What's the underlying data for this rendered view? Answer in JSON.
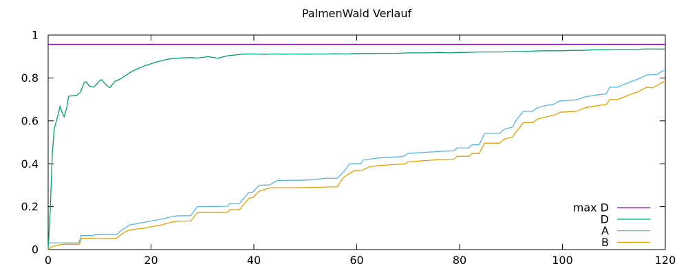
{
  "chart_data": {
    "type": "line",
    "title": "PalmenWald Verlauf",
    "xlabel": "",
    "ylabel": "",
    "xlim": [
      0,
      120
    ],
    "ylim": [
      0,
      1
    ],
    "xticks": [
      0,
      20,
      40,
      60,
      80,
      100,
      120
    ],
    "xtick_labels": [
      "0",
      "20",
      "40",
      "60",
      "80",
      "100",
      "120"
    ],
    "yticks": [
      0,
      0.2,
      0.4,
      0.6,
      0.8,
      1
    ],
    "ytick_labels": [
      "0",
      "0.2",
      "0.4",
      "0.6",
      "0.8",
      "1"
    ],
    "grid": false,
    "legend_position": "inside-bottom-right",
    "background_color": "#ffffff",
    "axis_color": "#000000",
    "series": [
      {
        "name": "max D",
        "color": "#9400d3",
        "points": [
          [
            0,
            0.957
          ],
          [
            120,
            0.957
          ]
        ]
      },
      {
        "name": "D",
        "color": "#009e73",
        "points": [
          [
            0,
            0
          ],
          [
            0.4,
            0.18
          ],
          [
            0.8,
            0.45
          ],
          [
            1.2,
            0.565
          ],
          [
            1.6,
            0.6
          ],
          [
            2,
            0.635
          ],
          [
            2.3,
            0.669
          ],
          [
            2.7,
            0.64
          ],
          [
            3.1,
            0.619
          ],
          [
            3.6,
            0.66
          ],
          [
            4,
            0.715
          ],
          [
            4.8,
            0.717
          ],
          [
            5.6,
            0.72
          ],
          [
            6.3,
            0.735
          ],
          [
            7,
            0.778
          ],
          [
            7.4,
            0.783
          ],
          [
            8,
            0.762
          ],
          [
            8.8,
            0.757
          ],
          [
            9.4,
            0.77
          ],
          [
            10,
            0.788
          ],
          [
            10.4,
            0.792
          ],
          [
            11,
            0.775
          ],
          [
            11.5,
            0.762
          ],
          [
            12,
            0.755
          ],
          [
            12.6,
            0.772
          ],
          [
            13,
            0.784
          ],
          [
            14,
            0.795
          ],
          [
            15,
            0.81
          ],
          [
            15.7,
            0.822
          ],
          [
            16.5,
            0.833
          ],
          [
            17.4,
            0.843
          ],
          [
            18.3,
            0.852
          ],
          [
            19.2,
            0.86
          ],
          [
            20,
            0.866
          ],
          [
            21,
            0.874
          ],
          [
            22,
            0.88
          ],
          [
            23,
            0.886
          ],
          [
            24,
            0.89
          ],
          [
            25,
            0.892
          ],
          [
            26,
            0.894
          ],
          [
            27,
            0.895
          ],
          [
            28,
            0.895
          ],
          [
            29,
            0.893
          ],
          [
            30,
            0.896
          ],
          [
            31,
            0.899
          ],
          [
            32,
            0.896
          ],
          [
            33,
            0.892
          ],
          [
            34,
            0.898
          ],
          [
            35,
            0.904
          ],
          [
            36,
            0.906
          ],
          [
            37,
            0.909
          ],
          [
            38,
            0.911
          ],
          [
            40,
            0.912
          ],
          [
            42,
            0.91
          ],
          [
            44,
            0.912
          ],
          [
            46,
            0.911
          ],
          [
            48,
            0.912
          ],
          [
            50,
            0.911
          ],
          [
            52,
            0.912
          ],
          [
            54,
            0.912
          ],
          [
            56,
            0.913
          ],
          [
            58,
            0.912
          ],
          [
            60,
            0.914
          ],
          [
            62,
            0.914
          ],
          [
            64,
            0.915
          ],
          [
            66,
            0.915
          ],
          [
            68,
            0.915
          ],
          [
            70,
            0.917
          ],
          [
            72,
            0.917
          ],
          [
            74,
            0.917
          ],
          [
            76,
            0.919
          ],
          [
            78,
            0.917
          ],
          [
            80,
            0.919
          ],
          [
            82,
            0.92
          ],
          [
            84,
            0.921
          ],
          [
            86,
            0.921
          ],
          [
            88,
            0.921
          ],
          [
            90,
            0.923
          ],
          [
            92,
            0.923
          ],
          [
            94,
            0.925
          ],
          [
            96,
            0.927
          ],
          [
            98,
            0.927
          ],
          [
            100,
            0.927
          ],
          [
            102,
            0.929
          ],
          [
            104,
            0.929
          ],
          [
            106,
            0.931
          ],
          [
            108,
            0.931
          ],
          [
            110,
            0.933
          ],
          [
            112,
            0.933
          ],
          [
            114,
            0.933
          ],
          [
            116,
            0.935
          ],
          [
            118,
            0.935
          ],
          [
            120,
            0.935
          ]
        ]
      },
      {
        "name": "A",
        "color": "#56b4e9",
        "points": [
          [
            0,
            0.031
          ],
          [
            6,
            0.031
          ],
          [
            6.4,
            0.065
          ],
          [
            8.8,
            0.065
          ],
          [
            9.1,
            0.07
          ],
          [
            13.3,
            0.07
          ],
          [
            14,
            0.085
          ],
          [
            15,
            0.101
          ],
          [
            15.7,
            0.114
          ],
          [
            17,
            0.12
          ],
          [
            18.7,
            0.127
          ],
          [
            20,
            0.133
          ],
          [
            22.3,
            0.143
          ],
          [
            24.1,
            0.154
          ],
          [
            25,
            0.157
          ],
          [
            27.7,
            0.158
          ],
          [
            29,
            0.2
          ],
          [
            32,
            0.201
          ],
          [
            34.9,
            0.202
          ],
          [
            35.3,
            0.215
          ],
          [
            37.2,
            0.215
          ],
          [
            39,
            0.266
          ],
          [
            39.8,
            0.268
          ],
          [
            41,
            0.3
          ],
          [
            43,
            0.301
          ],
          [
            44.6,
            0.322
          ],
          [
            49,
            0.323
          ],
          [
            52,
            0.326
          ],
          [
            53.5,
            0.332
          ],
          [
            56.2,
            0.332
          ],
          [
            57.5,
            0.364
          ],
          [
            58.6,
            0.4
          ],
          [
            60.8,
            0.4
          ],
          [
            61.3,
            0.418
          ],
          [
            64.2,
            0.427
          ],
          [
            67.8,
            0.432
          ],
          [
            69.1,
            0.435
          ],
          [
            70,
            0.448
          ],
          [
            73.1,
            0.453
          ],
          [
            76.2,
            0.458
          ],
          [
            78.9,
            0.46
          ],
          [
            79.5,
            0.474
          ],
          [
            81.8,
            0.474
          ],
          [
            82.4,
            0.488
          ],
          [
            83.8,
            0.488
          ],
          [
            84.9,
            0.542
          ],
          [
            87.8,
            0.542
          ],
          [
            88.6,
            0.56
          ],
          [
            90.3,
            0.571
          ],
          [
            91,
            0.603
          ],
          [
            92.4,
            0.645
          ],
          [
            94.2,
            0.645
          ],
          [
            95.1,
            0.661
          ],
          [
            96.9,
            0.672
          ],
          [
            98.2,
            0.677
          ],
          [
            99.5,
            0.693
          ],
          [
            102.7,
            0.698
          ],
          [
            104.4,
            0.712
          ],
          [
            107.1,
            0.722
          ],
          [
            108.5,
            0.726
          ],
          [
            109.2,
            0.757
          ],
          [
            110.7,
            0.757
          ],
          [
            112.9,
            0.779
          ],
          [
            114.7,
            0.795
          ],
          [
            116.4,
            0.814
          ],
          [
            118.5,
            0.817
          ],
          [
            119.3,
            0.832
          ],
          [
            120,
            0.835
          ]
        ]
      },
      {
        "name": "B",
        "color": "#e69f00",
        "points": [
          [
            0,
            0
          ],
          [
            0.7,
            0.013
          ],
          [
            1.5,
            0.018
          ],
          [
            3,
            0.025
          ],
          [
            6.1,
            0.025
          ],
          [
            6.5,
            0.052
          ],
          [
            9,
            0.052
          ],
          [
            9.3,
            0.05
          ],
          [
            13.3,
            0.052
          ],
          [
            14,
            0.068
          ],
          [
            15,
            0.083
          ],
          [
            15.7,
            0.09
          ],
          [
            17,
            0.095
          ],
          [
            18.7,
            0.1
          ],
          [
            20,
            0.106
          ],
          [
            22.3,
            0.116
          ],
          [
            24.1,
            0.129
          ],
          [
            25,
            0.132
          ],
          [
            27.7,
            0.133
          ],
          [
            29,
            0.172
          ],
          [
            32,
            0.172
          ],
          [
            34.9,
            0.173
          ],
          [
            35.3,
            0.186
          ],
          [
            37.2,
            0.186
          ],
          [
            39,
            0.239
          ],
          [
            39.8,
            0.242
          ],
          [
            41,
            0.272
          ],
          [
            43.2,
            0.288
          ],
          [
            48,
            0.288
          ],
          [
            52,
            0.29
          ],
          [
            55,
            0.292
          ],
          [
            56.2,
            0.292
          ],
          [
            57.4,
            0.336
          ],
          [
            58.3,
            0.35
          ],
          [
            59.5,
            0.368
          ],
          [
            61,
            0.37
          ],
          [
            62.5,
            0.386
          ],
          [
            64.5,
            0.392
          ],
          [
            68,
            0.397
          ],
          [
            69.3,
            0.399
          ],
          [
            70,
            0.409
          ],
          [
            73.1,
            0.414
          ],
          [
            76.2,
            0.42
          ],
          [
            78.9,
            0.421
          ],
          [
            79.5,
            0.435
          ],
          [
            81.8,
            0.435
          ],
          [
            82.4,
            0.448
          ],
          [
            83.8,
            0.448
          ],
          [
            84.9,
            0.496
          ],
          [
            87.8,
            0.496
          ],
          [
            88.6,
            0.514
          ],
          [
            90.3,
            0.525
          ],
          [
            91,
            0.549
          ],
          [
            92.4,
            0.592
          ],
          [
            94.2,
            0.592
          ],
          [
            95.1,
            0.608
          ],
          [
            96.9,
            0.619
          ],
          [
            98.7,
            0.629
          ],
          [
            99.5,
            0.64
          ],
          [
            102.7,
            0.645
          ],
          [
            104.4,
            0.661
          ],
          [
            107.1,
            0.672
          ],
          [
            108.5,
            0.676
          ],
          [
            109.2,
            0.699
          ],
          [
            110.7,
            0.699
          ],
          [
            112.9,
            0.72
          ],
          [
            114.7,
            0.736
          ],
          [
            116.4,
            0.757
          ],
          [
            117.5,
            0.754
          ],
          [
            119.2,
            0.776
          ],
          [
            120,
            0.785
          ]
        ]
      }
    ]
  }
}
